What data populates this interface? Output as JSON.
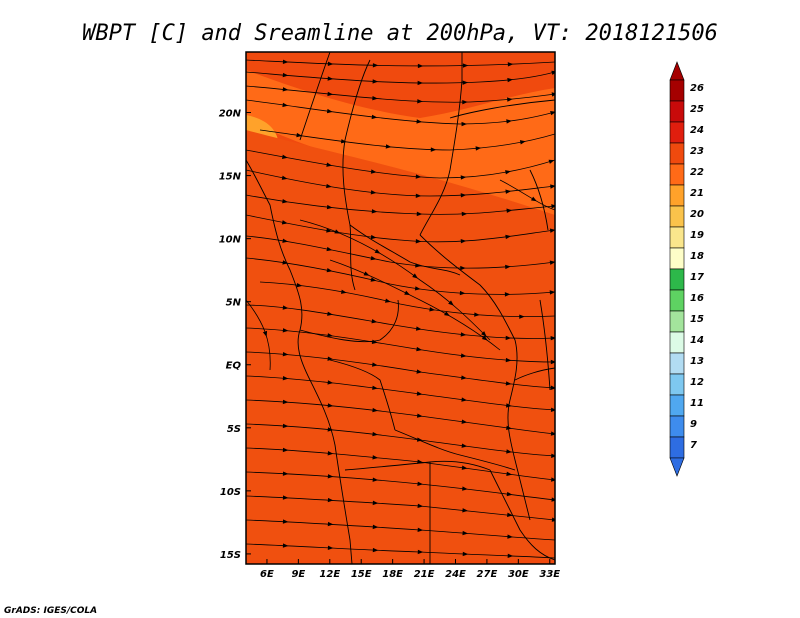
{
  "title": "WBPT [C] and Sreamline at 200hPa, VT: 2018121506",
  "credit": "GrADS: IGES/COLA",
  "map": {
    "lon_ticks": [
      "6E",
      "9E",
      "12E",
      "15E",
      "18E",
      "21E",
      "24E",
      "27E",
      "30E",
      "33E"
    ],
    "lat_ticks": [
      "20N",
      "15N",
      "10N",
      "5N",
      "EQ",
      "5S",
      "10S",
      "15S"
    ],
    "lon_range": [
      4,
      33.5
    ],
    "lat_range": [
      -15.8,
      24.8
    ],
    "field_colors": {
      "base": "#f04a0e",
      "warm_band": "#ff6a17",
      "hot_core": "#f0500f",
      "cool_patch": "#ffa22a"
    }
  },
  "colorbar": {
    "labels": [
      "26",
      "25",
      "24",
      "23",
      "22",
      "21",
      "20",
      "19",
      "18",
      "17",
      "16",
      "15",
      "14",
      "13",
      "12",
      "11",
      "9",
      "7"
    ],
    "colors": [
      "#a50000",
      "#c80a0a",
      "#e01e0e",
      "#f04a0e",
      "#ff6a17",
      "#ffa22a",
      "#fac34b",
      "#fae68c",
      "#fefec8",
      "#2db84a",
      "#5ed262",
      "#a3e49c",
      "#dcfbe6",
      "#b2dcf2",
      "#7ec8f0",
      "#50a8f0",
      "#3e8ced",
      "#2e6de2"
    ]
  }
}
